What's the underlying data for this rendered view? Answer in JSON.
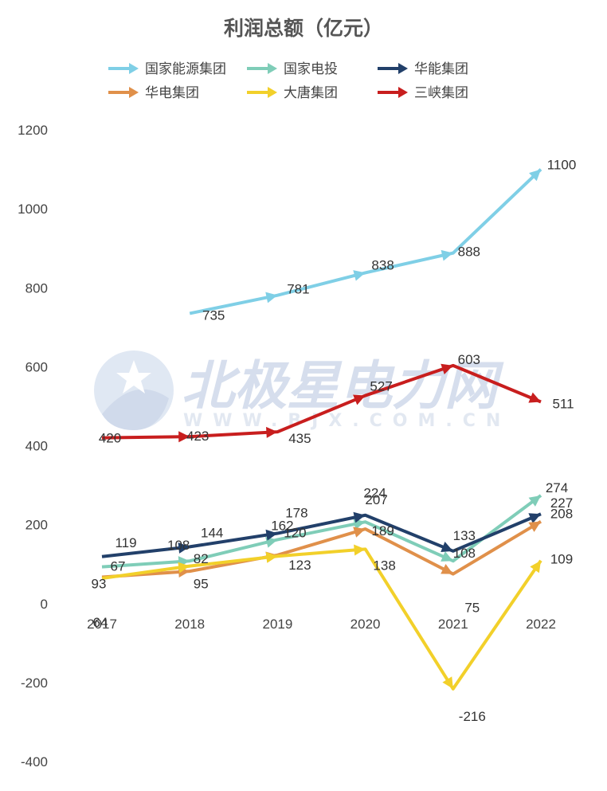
{
  "chart_data": {
    "type": "line",
    "title": "利润总额（亿元）",
    "categories": [
      "2017",
      "2018",
      "2019",
      "2020",
      "2021",
      "2022"
    ],
    "ylim": [
      -400,
      1200
    ],
    "yticks": [
      -400,
      -200,
      0,
      200,
      400,
      600,
      800,
      1000,
      1200
    ],
    "grid": false,
    "legend_position": "top",
    "series": [
      {
        "name": "国家能源集团",
        "color": "#7fcfe6",
        "values": [
          null,
          735,
          781,
          838,
          888,
          1100
        ]
      },
      {
        "name": "国家电投",
        "color": "#7fcdb8",
        "values": [
          93,
          108,
          162,
          207,
          108,
          274
        ]
      },
      {
        "name": "华能集团",
        "color": "#22406a",
        "values": [
          119,
          144,
          178,
          224,
          133,
          227
        ]
      },
      {
        "name": "华电集团",
        "color": "#e0904a",
        "values": [
          67,
          82,
          123,
          189,
          75,
          208
        ]
      },
      {
        "name": "大唐集团",
        "color": "#f2d02a",
        "values": [
          64,
          95,
          120,
          138,
          -216,
          109
        ]
      },
      {
        "name": "三峡集团",
        "color": "#c81e1e",
        "values": [
          420,
          423,
          435,
          527,
          603,
          511
        ]
      }
    ],
    "watermark": {
      "text": "北极星电力网",
      "subtext": "WWW.BJX.COM.CN"
    }
  }
}
